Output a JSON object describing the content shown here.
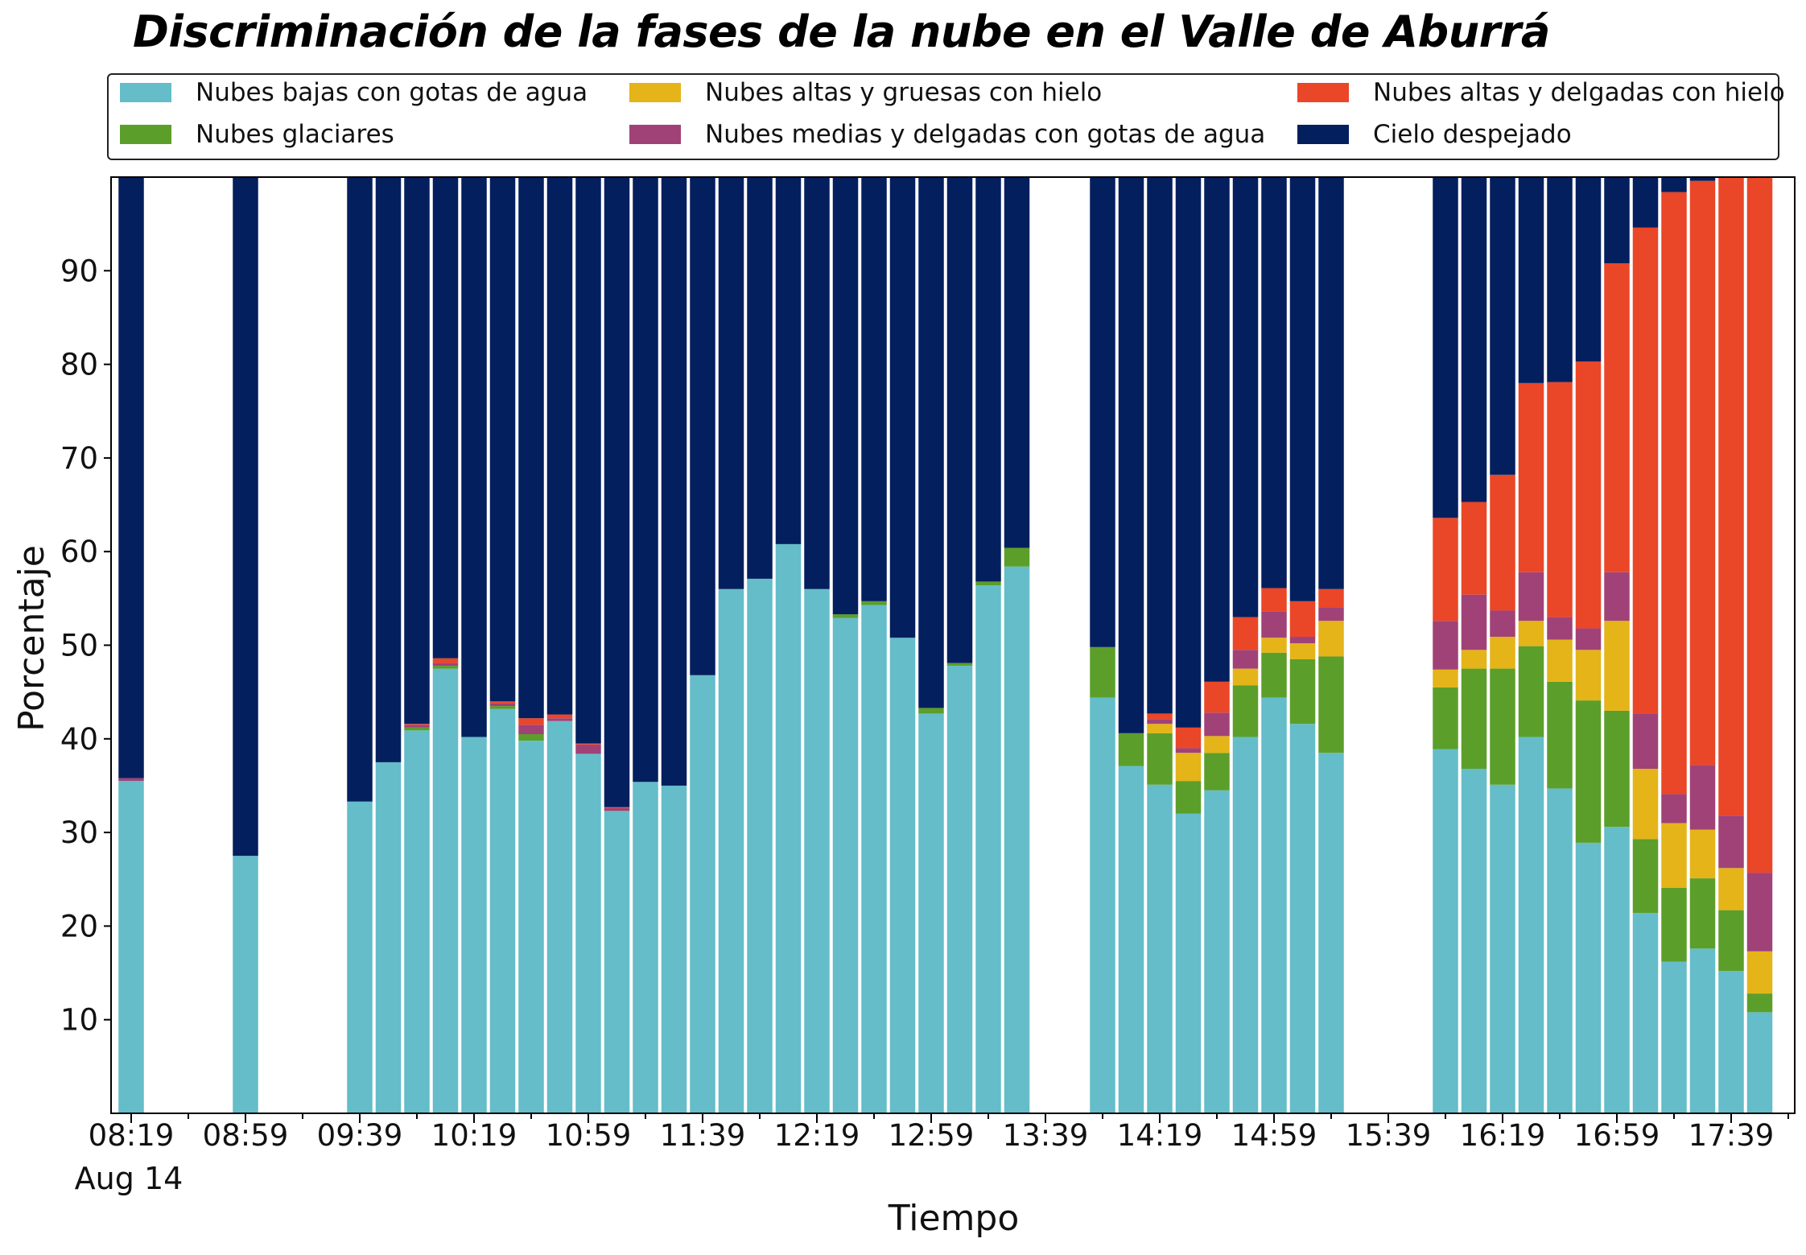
{
  "chart_data": {
    "type": "bar",
    "stacked": true,
    "title": "Discriminación de la fases de la nube en el Valle de Aburrá",
    "xlabel": "Tiempo",
    "ylabel": "Porcentaje",
    "ylim": [
      0,
      100
    ],
    "yticks": [
      10,
      20,
      30,
      40,
      50,
      60,
      70,
      80,
      90
    ],
    "xticks": [
      "08:19",
      "08:59",
      "09:39",
      "10:19",
      "10:59",
      "11:39",
      "12:19",
      "12:59",
      "13:39",
      "14:19",
      "14:59",
      "15:39",
      "16:19",
      "16:59",
      "17:39"
    ],
    "xtick_date": "Aug 14",
    "grid": false,
    "legend_position": "top",
    "colors": {
      "low_water": "#64bdc9",
      "glacial": "#5c9e2a",
      "high_thick_ice": "#e4b419",
      "mid_thin_water": "#a04277",
      "high_thin_ice": "#ea4628",
      "clear_sky": "#041f5e"
    },
    "series": [
      {
        "key": "low_water",
        "name": "Nubes bajas con gotas de agua"
      },
      {
        "key": "glacial",
        "name": "Nubes glaciares"
      },
      {
        "key": "high_thick_ice",
        "name": "Nubes altas y gruesas con hielo"
      },
      {
        "key": "mid_thin_water",
        "name": "Nubes medias y delgadas con gotas de agua"
      },
      {
        "key": "high_thin_ice",
        "name": "Nubes altas y delgadas con hielo"
      },
      {
        "key": "clear_sky",
        "name": "Cielo despejado"
      }
    ],
    "bars": [
      {
        "slot": 0,
        "low_water": 35.5,
        "glacial": 0,
        "high_thick_ice": 0,
        "mid_thin_water": 0.3,
        "high_thin_ice": 0,
        "clear_sky": 64.2
      },
      {
        "slot": 4,
        "low_water": 27.5,
        "glacial": 0,
        "high_thick_ice": 0,
        "mid_thin_water": 0,
        "high_thin_ice": 0,
        "clear_sky": 72.5
      },
      {
        "slot": 8,
        "low_water": 33.3,
        "glacial": 0,
        "high_thick_ice": 0,
        "mid_thin_water": 0,
        "high_thin_ice": 0,
        "clear_sky": 66.7
      },
      {
        "slot": 9,
        "low_water": 37.5,
        "glacial": 0,
        "high_thick_ice": 0,
        "mid_thin_water": 0,
        "high_thin_ice": 0,
        "clear_sky": 62.5
      },
      {
        "slot": 10,
        "low_water": 40.9,
        "glacial": 0.3,
        "high_thick_ice": 0,
        "mid_thin_water": 0.3,
        "high_thin_ice": 0.1,
        "clear_sky": 58.4
      },
      {
        "slot": 11,
        "low_water": 47.5,
        "glacial": 0.3,
        "high_thick_ice": 0,
        "mid_thin_water": 0.3,
        "high_thin_ice": 0.5,
        "clear_sky": 51.4
      },
      {
        "slot": 12,
        "low_water": 40.2,
        "glacial": 0,
        "high_thick_ice": 0,
        "mid_thin_water": 0,
        "high_thin_ice": 0,
        "clear_sky": 59.8
      },
      {
        "slot": 13,
        "low_water": 43.2,
        "glacial": 0.3,
        "high_thick_ice": 0,
        "mid_thin_water": 0.3,
        "high_thin_ice": 0.2,
        "clear_sky": 56.0
      },
      {
        "slot": 14,
        "low_water": 39.8,
        "glacial": 0.7,
        "high_thick_ice": 0,
        "mid_thin_water": 1.0,
        "high_thin_ice": 0.7,
        "clear_sky": 57.8
      },
      {
        "slot": 15,
        "low_water": 41.9,
        "glacial": 0,
        "high_thick_ice": 0,
        "mid_thin_water": 0.3,
        "high_thin_ice": 0.4,
        "clear_sky": 57.4
      },
      {
        "slot": 16,
        "low_water": 38.4,
        "glacial": 0,
        "high_thick_ice": 0,
        "mid_thin_water": 1.0,
        "high_thin_ice": 0.1,
        "clear_sky": 60.5
      },
      {
        "slot": 17,
        "low_water": 32.3,
        "glacial": 0,
        "high_thick_ice": 0,
        "mid_thin_water": 0.3,
        "high_thin_ice": 0.1,
        "clear_sky": 67.3
      },
      {
        "slot": 18,
        "low_water": 35.4,
        "glacial": 0,
        "high_thick_ice": 0,
        "mid_thin_water": 0,
        "high_thin_ice": 0,
        "clear_sky": 64.6
      },
      {
        "slot": 19,
        "low_water": 35.0,
        "glacial": 0,
        "high_thick_ice": 0,
        "mid_thin_water": 0,
        "high_thin_ice": 0,
        "clear_sky": 65.0
      },
      {
        "slot": 20,
        "low_water": 46.8,
        "glacial": 0,
        "high_thick_ice": 0,
        "mid_thin_water": 0,
        "high_thin_ice": 0,
        "clear_sky": 53.2
      },
      {
        "slot": 21,
        "low_water": 56.0,
        "glacial": 0,
        "high_thick_ice": 0,
        "mid_thin_water": 0,
        "high_thin_ice": 0,
        "clear_sky": 44.0
      },
      {
        "slot": 22,
        "low_water": 57.1,
        "glacial": 0,
        "high_thick_ice": 0,
        "mid_thin_water": 0,
        "high_thin_ice": 0,
        "clear_sky": 42.9
      },
      {
        "slot": 23,
        "low_water": 60.8,
        "glacial": 0,
        "high_thick_ice": 0,
        "mid_thin_water": 0,
        "high_thin_ice": 0,
        "clear_sky": 39.2
      },
      {
        "slot": 24,
        "low_water": 56.0,
        "glacial": 0,
        "high_thick_ice": 0,
        "mid_thin_water": 0,
        "high_thin_ice": 0,
        "clear_sky": 44.0
      },
      {
        "slot": 25,
        "low_water": 52.9,
        "glacial": 0.4,
        "high_thick_ice": 0,
        "mid_thin_water": 0,
        "high_thin_ice": 0,
        "clear_sky": 46.7
      },
      {
        "slot": 26,
        "low_water": 54.3,
        "glacial": 0.4,
        "high_thick_ice": 0,
        "mid_thin_water": 0,
        "high_thin_ice": 0,
        "clear_sky": 45.3
      },
      {
        "slot": 27,
        "low_water": 50.8,
        "glacial": 0,
        "high_thick_ice": 0,
        "mid_thin_water": 0,
        "high_thin_ice": 0,
        "clear_sky": 49.2
      },
      {
        "slot": 28,
        "low_water": 42.7,
        "glacial": 0.6,
        "high_thick_ice": 0,
        "mid_thin_water": 0,
        "high_thin_ice": 0,
        "clear_sky": 56.7
      },
      {
        "slot": 29,
        "low_water": 47.8,
        "glacial": 0.3,
        "high_thick_ice": 0,
        "mid_thin_water": 0,
        "high_thin_ice": 0,
        "clear_sky": 51.9
      },
      {
        "slot": 30,
        "low_water": 56.4,
        "glacial": 0.4,
        "high_thick_ice": 0,
        "mid_thin_water": 0,
        "high_thin_ice": 0,
        "clear_sky": 43.2
      },
      {
        "slot": 31,
        "low_water": 58.4,
        "glacial": 2.0,
        "high_thick_ice": 0,
        "mid_thin_water": 0,
        "high_thin_ice": 0,
        "clear_sky": 39.6
      },
      {
        "slot": 34,
        "low_water": 44.4,
        "glacial": 5.4,
        "high_thick_ice": 0,
        "mid_thin_water": 0,
        "high_thin_ice": 0,
        "clear_sky": 50.2
      },
      {
        "slot": 35,
        "low_water": 37.1,
        "glacial": 3.5,
        "high_thick_ice": 0,
        "mid_thin_water": 0,
        "high_thin_ice": 0,
        "clear_sky": 59.4
      },
      {
        "slot": 36,
        "low_water": 35.1,
        "glacial": 5.5,
        "high_thick_ice": 1.0,
        "mid_thin_water": 0.5,
        "high_thin_ice": 0.6,
        "clear_sky": 57.3
      },
      {
        "slot": 37,
        "low_water": 32.0,
        "glacial": 3.5,
        "high_thick_ice": 3.0,
        "mid_thin_water": 0.5,
        "high_thin_ice": 2.2,
        "clear_sky": 58.8
      },
      {
        "slot": 38,
        "low_water": 34.5,
        "glacial": 4.0,
        "high_thick_ice": 1.8,
        "mid_thin_water": 2.5,
        "high_thin_ice": 3.3,
        "clear_sky": 53.9
      },
      {
        "slot": 39,
        "low_water": 40.2,
        "glacial": 5.5,
        "high_thick_ice": 1.8,
        "mid_thin_water": 2.0,
        "high_thin_ice": 3.5,
        "clear_sky": 47.0
      },
      {
        "slot": 40,
        "low_water": 44.4,
        "glacial": 4.8,
        "high_thick_ice": 1.6,
        "mid_thin_water": 2.8,
        "high_thin_ice": 2.5,
        "clear_sky": 43.9
      },
      {
        "slot": 41,
        "low_water": 41.6,
        "glacial": 6.9,
        "high_thick_ice": 1.7,
        "mid_thin_water": 0.7,
        "high_thin_ice": 3.8,
        "clear_sky": 45.3
      },
      {
        "slot": 42,
        "low_water": 38.5,
        "glacial": 10.3,
        "high_thick_ice": 3.8,
        "mid_thin_water": 1.4,
        "high_thin_ice": 2.0,
        "clear_sky": 44.0
      },
      {
        "slot": 46,
        "low_water": 38.9,
        "glacial": 6.6,
        "high_thick_ice": 1.9,
        "mid_thin_water": 5.2,
        "high_thin_ice": 11.0,
        "clear_sky": 36.4
      },
      {
        "slot": 47,
        "low_water": 36.8,
        "glacial": 10.7,
        "high_thick_ice": 2.0,
        "mid_thin_water": 5.9,
        "high_thin_ice": 9.9,
        "clear_sky": 34.7
      },
      {
        "slot": 48,
        "low_water": 35.1,
        "glacial": 12.4,
        "high_thick_ice": 3.4,
        "mid_thin_water": 2.8,
        "high_thin_ice": 14.5,
        "clear_sky": 31.8
      },
      {
        "slot": 49,
        "low_water": 40.2,
        "glacial": 9.7,
        "high_thick_ice": 2.7,
        "mid_thin_water": 5.2,
        "high_thin_ice": 20.2,
        "clear_sky": 22.0
      },
      {
        "slot": 50,
        "low_water": 34.7,
        "glacial": 11.4,
        "high_thick_ice": 4.5,
        "mid_thin_water": 2.4,
        "high_thin_ice": 25.1,
        "clear_sky": 21.9
      },
      {
        "slot": 51,
        "low_water": 28.9,
        "glacial": 15.2,
        "high_thick_ice": 5.4,
        "mid_thin_water": 2.3,
        "high_thin_ice": 28.5,
        "clear_sky": 19.7
      },
      {
        "slot": 52,
        "low_water": 30.6,
        "glacial": 12.4,
        "high_thick_ice": 9.6,
        "mid_thin_water": 5.2,
        "high_thin_ice": 33.0,
        "clear_sky": 9.2
      },
      {
        "slot": 53,
        "low_water": 21.4,
        "glacial": 7.9,
        "high_thick_ice": 7.5,
        "mid_thin_water": 5.9,
        "high_thin_ice": 51.9,
        "clear_sky": 5.4
      },
      {
        "slot": 54,
        "low_water": 16.2,
        "glacial": 7.9,
        "high_thick_ice": 6.9,
        "mid_thin_water": 3.1,
        "high_thin_ice": 64.3,
        "clear_sky": 1.6
      },
      {
        "slot": 55,
        "low_water": 17.6,
        "glacial": 7.5,
        "high_thick_ice": 5.2,
        "mid_thin_water": 6.9,
        "high_thin_ice": 62.4,
        "clear_sky": 0.4
      },
      {
        "slot": 56,
        "low_water": 15.2,
        "glacial": 6.5,
        "high_thick_ice": 4.5,
        "mid_thin_water": 5.6,
        "high_thin_ice": 68.2,
        "clear_sky": 0
      },
      {
        "slot": 57,
        "low_water": 10.8,
        "glacial": 2.0,
        "high_thick_ice": 4.5,
        "mid_thin_water": 8.4,
        "high_thin_ice": 74.3,
        "clear_sky": 0
      }
    ]
  }
}
